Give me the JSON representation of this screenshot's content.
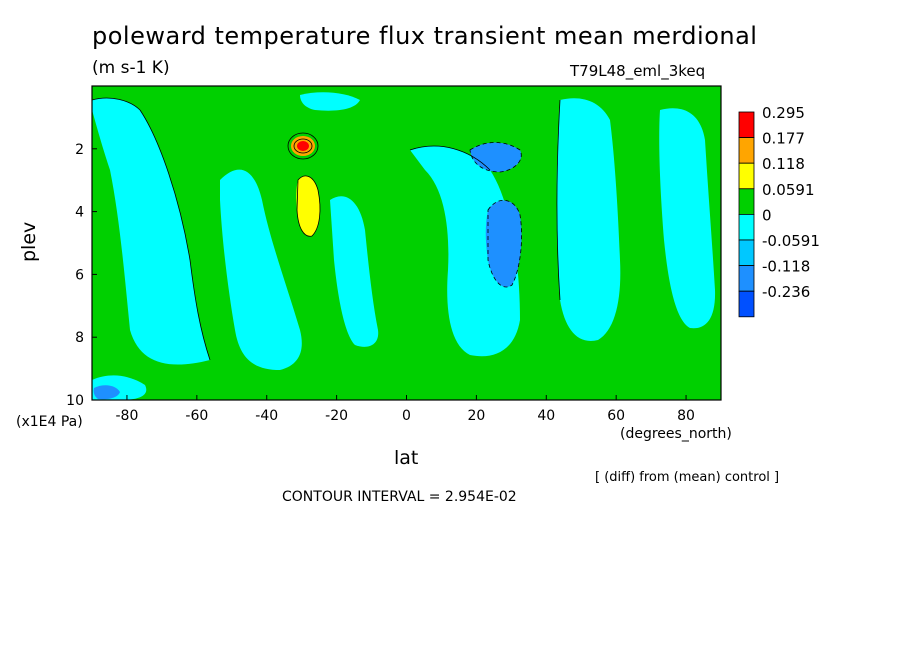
{
  "title": "poleward temperature flux transient mean merdional",
  "units": "(m s-1 K)",
  "experiment": "T79L48_eml_3keq",
  "x_units": "(degrees_north)",
  "y_units": "(x1E4 Pa)",
  "diff_note": "[ (diff) from (mean) control ]",
  "contour_interval": "CONTOUR INTERVAL = 2.954E-02",
  "chart_data": {
    "type": "heatmap",
    "title": "poleward temperature flux transient mean merdional",
    "xlabel": "lat",
    "ylabel": "plev",
    "xlim": [
      -90,
      90
    ],
    "ylim": [
      10,
      0
    ],
    "x_ticks": [
      "-80",
      "-60",
      "-40",
      "-20",
      "0",
      "20",
      "40",
      "60",
      "80"
    ],
    "y_ticks": [
      "2",
      "4",
      "6",
      "8",
      "10"
    ],
    "colorbar": {
      "levels": [
        "0.295",
        "0.177",
        "0.118",
        "0.0591",
        "0",
        "-0.0591",
        "-0.118",
        "-0.236"
      ],
      "colors": [
        "#ff0000",
        "#ffa500",
        "#ffff00",
        "#00d000",
        "#00ffff",
        "#00c8ff",
        "#1e90ff",
        "#0050ff"
      ]
    },
    "features": [
      {
        "lat": -30,
        "plev": 2.0,
        "value": 0.295
      },
      {
        "lat": -30,
        "plev": 4.0,
        "value": 0.0591
      },
      {
        "lat": 28,
        "plev": 2.0,
        "value": -0.118
      },
      {
        "lat": 28,
        "plev": 5.0,
        "value": -0.118
      },
      {
        "lat": -85,
        "plev": 9.8,
        "value": -0.118
      }
    ]
  }
}
